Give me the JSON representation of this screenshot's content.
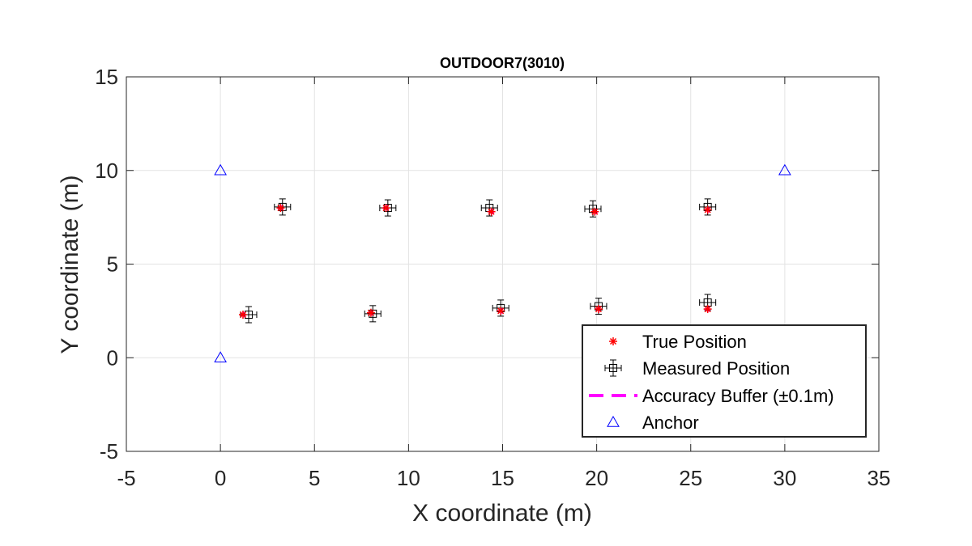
{
  "chart_data": {
    "type": "scatter",
    "title": "OUTDOOR7(3010)",
    "xlabel": "X coordinate (m)",
    "ylabel": "Y coordinate (m)",
    "xlim": [
      -5,
      35
    ],
    "ylim": [
      -5,
      15
    ],
    "xticks": [
      "-5",
      "0",
      "5",
      "10",
      "15",
      "20",
      "25",
      "30",
      "35"
    ],
    "yticks": [
      "15",
      "10",
      "5",
      "0",
      "-5"
    ],
    "grid": true,
    "legend_location": "bottom-right",
    "series": [
      {
        "name": "True Position",
        "marker": "asterisk",
        "color": "#ff0000",
        "points": [
          [
            3.2,
            8.0
          ],
          [
            8.8,
            8.0
          ],
          [
            14.4,
            7.8
          ],
          [
            19.9,
            7.8
          ],
          [
            25.9,
            7.9
          ],
          [
            1.2,
            2.3
          ],
          [
            8.0,
            2.4
          ],
          [
            14.9,
            2.5
          ],
          [
            20.1,
            2.6
          ],
          [
            25.9,
            2.6
          ]
        ]
      },
      {
        "name": "Measured Position",
        "marker": "square-errorbar",
        "color": "#000000",
        "points": [
          [
            3.3,
            8.05
          ],
          [
            8.9,
            8.0
          ],
          [
            14.3,
            8.0
          ],
          [
            19.8,
            7.95
          ],
          [
            25.9,
            8.05
          ],
          [
            1.5,
            2.3
          ],
          [
            8.1,
            2.35
          ],
          [
            14.9,
            2.65
          ],
          [
            20.1,
            2.75
          ],
          [
            25.9,
            2.95
          ]
        ]
      },
      {
        "name": "Accuracy Buffer (±0.1m)",
        "marker": "dashed-line",
        "color": "#ff00ff",
        "points": [
          [
            3.2,
            8.0
          ],
          [
            8.8,
            8.0
          ],
          [
            14.4,
            7.8
          ],
          [
            19.9,
            7.8
          ],
          [
            25.9,
            7.9
          ],
          [
            1.2,
            2.3
          ],
          [
            8.0,
            2.4
          ],
          [
            14.9,
            2.5
          ],
          [
            20.1,
            2.6
          ],
          [
            25.9,
            2.6
          ]
        ]
      },
      {
        "name": "Anchor",
        "marker": "triangle",
        "color": "#0000ff",
        "points": [
          [
            0,
            10
          ],
          [
            30,
            10
          ],
          [
            0,
            0
          ]
        ]
      }
    ]
  }
}
